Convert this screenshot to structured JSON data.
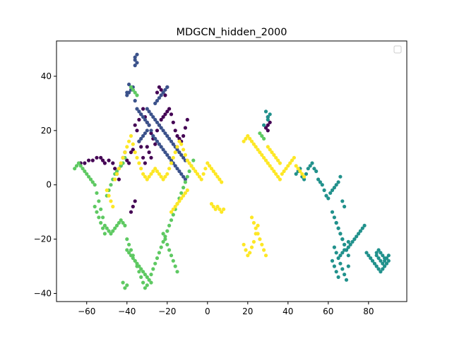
{
  "chart_data": {
    "type": "scatter",
    "title": "MDGCN_hidden_2000",
    "xlabel": "",
    "ylabel": "",
    "xlim": [
      -75,
      99
    ],
    "ylim": [
      -43,
      53
    ],
    "xticks": [
      -60,
      -40,
      -20,
      0,
      20,
      40,
      60,
      80
    ],
    "yticks": [
      -40,
      -20,
      0,
      20,
      40
    ],
    "xtick_labels": [
      "−60",
      "−40",
      "−20",
      "0",
      "20",
      "40",
      "60",
      "80"
    ],
    "ytick_labels": [
      "−40",
      "−20",
      "0",
      "20",
      "40"
    ],
    "grid": false,
    "legend": "top-right (empty)",
    "colors": {
      "dark_purple": "#440154",
      "indigo": "#3b528b",
      "teal": "#21918c",
      "green": "#5ec962",
      "yellow": "#fde725"
    },
    "series": [
      {
        "color": "#440154",
        "x": [
          -63,
          -61,
          -59,
          -57,
          -55,
          -53,
          -52,
          -51,
          -49,
          -47,
          -46,
          -45,
          -44,
          -43,
          -42,
          -41,
          -40,
          -39,
          -38,
          -37,
          -36,
          -35,
          -34,
          -33,
          -32,
          -31,
          -30,
          -29,
          -28,
          -27,
          -26,
          -25,
          -24,
          -23,
          -22,
          -21,
          -20,
          -19,
          -18,
          -17,
          -16,
          -15,
          -14,
          -13,
          -12,
          -11,
          -10,
          -30,
          -29,
          -28,
          -31,
          -32,
          -33,
          -34,
          -25,
          -24,
          -23,
          -22,
          -21,
          -20,
          30,
          31,
          30,
          29,
          30,
          -38,
          -37,
          -36
        ],
        "y": [
          8,
          8,
          9,
          9,
          10,
          10,
          9,
          8,
          9,
          8,
          6,
          4,
          2,
          7,
          10,
          12,
          9,
          8,
          12,
          13,
          22,
          20,
          24,
          26,
          28,
          25,
          23,
          22,
          19,
          17,
          15,
          20,
          22,
          24,
          25,
          26,
          27,
          28,
          26,
          23,
          20,
          18,
          17,
          16,
          18,
          21,
          24,
          14,
          12,
          10,
          8,
          10,
          14,
          16,
          34,
          36,
          35,
          34,
          33,
          36,
          22,
          23,
          25,
          21,
          20,
          -10,
          -8,
          -6
        ]
      },
      {
        "color": "#3b528b",
        "x": [
          -40,
          -39,
          -38,
          -37,
          -36,
          -35,
          -34,
          -33,
          -32,
          -31,
          -30,
          -29,
          -28,
          -27,
          -26,
          -25,
          -24,
          -23,
          -22,
          -21,
          -20,
          -19,
          -18,
          -17,
          -16,
          -15,
          -14,
          -13,
          -12,
          -11,
          -30,
          -29,
          -28,
          -27,
          -26,
          -25,
          -24,
          -23,
          -22,
          -21,
          -20,
          -19,
          -18,
          -17,
          -16,
          -15,
          -14,
          -13,
          -12,
          -11,
          -36,
          -35,
          -36,
          -35,
          -36,
          -37,
          -38,
          -39,
          -40,
          -30,
          -31,
          -32,
          -33,
          -34,
          -26,
          -25,
          -24,
          -23,
          -22,
          -21,
          -20
        ],
        "y": [
          34,
          37,
          36,
          35,
          31,
          28,
          27,
          26,
          25,
          24,
          23,
          22,
          20,
          18,
          17,
          16,
          15,
          14,
          13,
          12,
          11,
          10,
          9,
          8,
          7,
          6,
          5,
          4,
          3,
          2,
          28,
          27,
          26,
          25,
          24,
          23,
          22,
          21,
          20,
          19,
          18,
          17,
          16,
          15,
          14,
          13,
          12,
          11,
          10,
          9,
          47,
          48,
          46,
          45,
          44,
          36,
          35,
          34,
          33,
          20,
          19,
          18,
          17,
          16,
          30,
          31,
          32,
          33,
          34,
          35,
          36
        ]
      },
      {
        "color": "#21918c",
        "x": [
          30,
          31,
          29,
          30,
          28,
          44,
          45,
          46,
          47,
          48,
          49,
          50,
          51,
          52,
          53,
          54,
          55,
          56,
          57,
          58,
          59,
          60,
          61,
          62,
          63,
          64,
          65,
          66,
          67,
          68,
          62,
          63,
          64,
          65,
          66,
          67,
          68,
          69,
          70,
          63,
          64,
          65,
          66,
          67,
          68,
          69,
          70,
          64,
          65,
          66,
          67,
          68,
          69,
          70,
          62,
          63,
          64,
          65,
          66,
          67,
          68,
          70,
          71,
          72,
          73,
          74,
          75,
          76,
          77,
          78,
          79,
          80,
          81,
          82,
          83,
          84,
          85,
          86,
          87,
          88,
          89,
          90,
          88,
          87,
          86,
          85,
          84,
          84,
          85,
          86,
          87,
          88,
          89,
          90
        ],
        "y": [
          25,
          26,
          27,
          24,
          22,
          4,
          5,
          6,
          3,
          2,
          4,
          6,
          7,
          8,
          6,
          5,
          2,
          1,
          0,
          -2,
          -4,
          -5,
          -3,
          -2,
          -1,
          0,
          1,
          3,
          -6,
          -8,
          -10,
          -12,
          -14,
          -16,
          -18,
          -20,
          -22,
          -24,
          -21,
          -23,
          -25,
          -27,
          -29,
          -31,
          -33,
          -35,
          -30,
          -14,
          -16,
          -18,
          -20,
          -22,
          -24,
          -26,
          -28,
          -30,
          -32,
          -34,
          -26,
          -25,
          -24,
          -23,
          -22,
          -21,
          -20,
          -19,
          -18,
          -17,
          -16,
          -15,
          -25,
          -26,
          -27,
          -28,
          -29,
          -30,
          -31,
          -32,
          -31,
          -30,
          -29,
          -28,
          -27,
          -26,
          -25,
          -24,
          -25,
          -26,
          -27,
          -28,
          -29,
          -28,
          -27,
          -26
        ]
      },
      {
        "color": "#5ec962",
        "x": [
          -66,
          -65,
          -64,
          -63,
          -62,
          -61,
          -60,
          -59,
          -58,
          -57,
          -56,
          -55,
          -54,
          -53,
          -52,
          -51,
          -50,
          -49,
          -48,
          -47,
          -46,
          -45,
          -44,
          -43,
          -42,
          -41,
          -56,
          -55,
          -54,
          -53,
          -52,
          -51,
          -50,
          -49,
          -48,
          -47,
          -46,
          -45,
          -44,
          -43,
          -42,
          -41,
          -40,
          -39,
          -38,
          -37,
          -36,
          -35,
          -34,
          -33,
          -32,
          -31,
          -30,
          -29,
          -28,
          -27,
          -26,
          -25,
          -24,
          -23,
          -22,
          -21,
          -20,
          -19,
          -18,
          -17,
          -16,
          -15,
          -14,
          -13,
          -12,
          -11,
          -10,
          -9,
          -8,
          -7,
          -38,
          -37,
          -36,
          -35,
          -40,
          -41,
          -42,
          -40,
          -39,
          -38,
          -37,
          -36,
          -35,
          -34,
          -33,
          -32,
          -31,
          -30,
          -29,
          -28,
          28,
          27,
          26,
          -22,
          -21,
          -20,
          -19,
          -18,
          -17,
          -16,
          -15
        ],
        "y": [
          6,
          7,
          8,
          7,
          6,
          5,
          4,
          3,
          2,
          1,
          0,
          -3,
          -6,
          -9,
          -12,
          -15,
          -16,
          -17,
          -18,
          -17,
          -16,
          -15,
          -14,
          -13,
          -14,
          -15,
          -8,
          -10,
          -12,
          -14,
          -16,
          -18,
          -4,
          -2,
          0,
          2,
          4,
          5,
          6,
          7,
          8,
          10,
          -20,
          -22,
          -24,
          -26,
          -28,
          -30,
          -32,
          -34,
          -36,
          -38,
          -37,
          -35,
          -33,
          -31,
          -29,
          -27,
          -25,
          -23,
          -21,
          -19,
          -17,
          -15,
          -13,
          -11,
          -9,
          -7,
          -5,
          -3,
          -1,
          1,
          3,
          5,
          7,
          9,
          36,
          35,
          34,
          33,
          -37,
          -38,
          -36,
          -24,
          -25,
          -26,
          -27,
          -28,
          -29,
          -30,
          -31,
          -32,
          -33,
          -34,
          -35,
          -36,
          17,
          18,
          19,
          -18,
          -20,
          -22,
          -24,
          -26,
          -28,
          -30,
          -32
        ]
      },
      {
        "color": "#fde725",
        "x": [
          -50,
          -49,
          -48,
          -47,
          -46,
          -45,
          -44,
          -43,
          -42,
          -41,
          -40,
          -39,
          -38,
          -37,
          -36,
          -35,
          -34,
          -33,
          -32,
          -31,
          -30,
          -29,
          -28,
          -27,
          -26,
          -25,
          -24,
          -23,
          -22,
          -21,
          -20,
          -19,
          -18,
          -17,
          -16,
          -15,
          -14,
          -13,
          -12,
          -11,
          -10,
          -9,
          -8,
          -7,
          -6,
          -5,
          -4,
          -3,
          -2,
          -1,
          0,
          1,
          2,
          3,
          4,
          5,
          6,
          7,
          -18,
          -17,
          -16,
          -15,
          -14,
          -13,
          -12,
          -11,
          -10,
          2,
          3,
          4,
          5,
          6,
          7,
          8,
          18,
          19,
          20,
          21,
          22,
          23,
          24,
          25,
          18,
          19,
          20,
          21,
          22,
          23,
          24,
          25,
          26,
          27,
          28,
          29,
          30,
          31,
          32,
          33,
          34,
          35,
          36,
          37,
          38,
          39,
          40,
          41,
          42,
          43,
          44,
          45,
          46,
          47,
          48,
          22,
          23,
          24,
          25,
          26,
          27,
          28,
          29,
          30,
          31,
          32,
          33,
          34,
          35,
          36
        ],
        "y": [
          -2,
          -4,
          -6,
          -8,
          2,
          4,
          6,
          8,
          10,
          12,
          14,
          16,
          18,
          15,
          12,
          10,
          8,
          6,
          4,
          3,
          2,
          3,
          4,
          5,
          6,
          5,
          4,
          3,
          2,
          3,
          4,
          6,
          8,
          10,
          12,
          14,
          16,
          15,
          13,
          11,
          9,
          8,
          7,
          6,
          5,
          4,
          3,
          2,
          4,
          6,
          8,
          7,
          6,
          5,
          4,
          3,
          2,
          1,
          -10,
          -9,
          -8,
          -7,
          -6,
          -5,
          -4,
          -3,
          -2,
          -7,
          -8,
          -9,
          -8,
          -9,
          -10,
          -9,
          -22,
          -24,
          -26,
          -25,
          -23,
          -21,
          -18,
          -15,
          16,
          17,
          18,
          17,
          16,
          15,
          14,
          13,
          12,
          11,
          10,
          9,
          8,
          7,
          6,
          5,
          4,
          3,
          2,
          4,
          5,
          6,
          7,
          8,
          9,
          10,
          7,
          6,
          5,
          4,
          3,
          -12,
          -14,
          -16,
          -18,
          -20,
          -22,
          -24,
          -26,
          14,
          13,
          12,
          11,
          10,
          9,
          8
        ]
      }
    ]
  }
}
